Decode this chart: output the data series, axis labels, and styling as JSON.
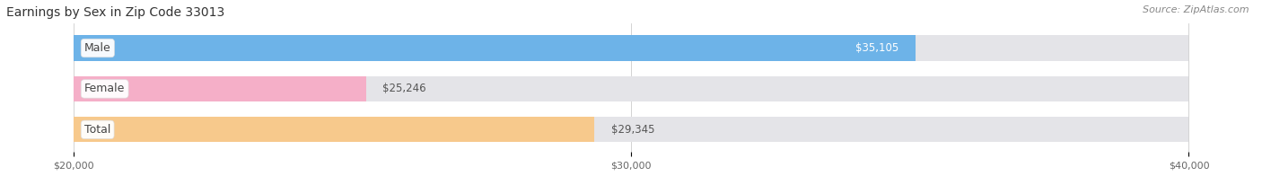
{
  "title": "Earnings by Sex in Zip Code 33013",
  "source": "Source: ZipAtlas.com",
  "categories": [
    "Male",
    "Female",
    "Total"
  ],
  "values": [
    35105,
    25246,
    29345
  ],
  "bar_colors": [
    "#6db3e8",
    "#f5afc8",
    "#f7c98c"
  ],
  "bar_bg_color": "#e4e4e8",
  "value_labels": [
    "$35,105",
    "$25,246",
    "$29,345"
  ],
  "value_inside": [
    true,
    false,
    false
  ],
  "xmin": 20000,
  "xmax": 40000,
  "xticks": [
    20000,
    30000,
    40000
  ],
  "xtick_labels": [
    "$20,000",
    "$30,000",
    "$40,000"
  ],
  "fig_bg_color": "#ffffff",
  "title_fontsize": 10,
  "label_fontsize": 9,
  "value_fontsize": 8.5,
  "source_fontsize": 8
}
